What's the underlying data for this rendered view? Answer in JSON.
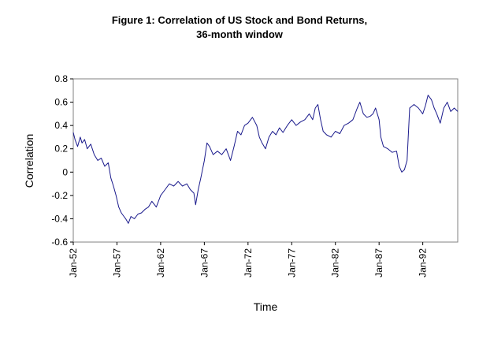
{
  "chart_data": {
    "type": "line",
    "title": "Figure 1: Correlation of US Stock and Bond Returns,",
    "subtitle": "36-month window",
    "xlabel": "Time",
    "ylabel": "Correlation",
    "ylim": [
      -0.6,
      0.8
    ],
    "xlim": [
      1952.0,
      1996.0
    ],
    "yticks": [
      "0.8",
      "0.6",
      "0.4",
      "0.2",
      "0",
      "-0.2",
      "-0.4",
      "-0.6"
    ],
    "xtick_labels": [
      "Jan-52",
      "Jan-57",
      "Jan-62",
      "Jan-67",
      "Jan-72",
      "Jan-77",
      "Jan-82",
      "Jan-87",
      "Jan-92"
    ],
    "grid": false,
    "legend": "none",
    "line_color": "#1a1a8c",
    "series": [
      {
        "x": [
          1952.0,
          1952.2,
          1952.5,
          1952.8,
          1953.0,
          1953.3,
          1953.6,
          1954.0,
          1954.4,
          1954.8,
          1955.2,
          1955.6,
          1956.0,
          1956.3,
          1956.6,
          1956.9,
          1957.2,
          1957.5,
          1957.8,
          1958.0,
          1958.3,
          1958.6,
          1959.0,
          1959.4,
          1959.8,
          1960.2,
          1960.6,
          1961.0,
          1961.5,
          1962.0,
          1962.5,
          1963.0,
          1963.5,
          1964.0,
          1964.5,
          1965.0,
          1965.4,
          1965.8,
          1966.0,
          1966.3,
          1966.6,
          1967.0,
          1967.3,
          1967.6,
          1968.0,
          1968.5,
          1969.0,
          1969.5,
          1970.0,
          1970.4,
          1970.8,
          1971.2,
          1971.6,
          1972.0,
          1972.5,
          1973.0,
          1973.3,
          1973.6,
          1974.0,
          1974.4,
          1974.8,
          1975.2,
          1975.6,
          1976.0,
          1976.5,
          1977.0,
          1977.5,
          1978.0,
          1978.5,
          1979.0,
          1979.4,
          1979.7,
          1980.0,
          1980.3,
          1980.6,
          1981.0,
          1981.5,
          1982.0,
          1982.5,
          1983.0,
          1983.5,
          1984.0,
          1984.5,
          1984.8,
          1985.2,
          1985.6,
          1986.0,
          1986.3,
          1986.6,
          1987.0,
          1987.2,
          1987.5,
          1988.0,
          1988.5,
          1989.0,
          1989.3,
          1989.6,
          1989.9,
          1990.2,
          1990.5,
          1991.0,
          1991.5,
          1992.0,
          1992.3,
          1992.6,
          1993.0,
          1993.3,
          1993.6,
          1994.0,
          1994.4,
          1994.8,
          1995.2,
          1995.6,
          1996.0
        ],
        "y": [
          0.34,
          0.28,
          0.22,
          0.3,
          0.25,
          0.28,
          0.2,
          0.24,
          0.15,
          0.1,
          0.12,
          0.05,
          0.08,
          -0.05,
          -0.12,
          -0.2,
          -0.3,
          -0.35,
          -0.38,
          -0.4,
          -0.44,
          -0.38,
          -0.4,
          -0.36,
          -0.35,
          -0.32,
          -0.3,
          -0.25,
          -0.3,
          -0.2,
          -0.15,
          -0.1,
          -0.12,
          -0.08,
          -0.12,
          -0.1,
          -0.15,
          -0.18,
          -0.28,
          -0.15,
          -0.05,
          0.1,
          0.25,
          0.22,
          0.15,
          0.18,
          0.15,
          0.2,
          0.1,
          0.22,
          0.35,
          0.32,
          0.4,
          0.42,
          0.47,
          0.4,
          0.3,
          0.25,
          0.2,
          0.3,
          0.35,
          0.32,
          0.38,
          0.34,
          0.4,
          0.45,
          0.4,
          0.43,
          0.45,
          0.5,
          0.45,
          0.55,
          0.58,
          0.45,
          0.35,
          0.32,
          0.3,
          0.35,
          0.33,
          0.4,
          0.42,
          0.45,
          0.55,
          0.6,
          0.5,
          0.47,
          0.48,
          0.5,
          0.55,
          0.45,
          0.3,
          0.22,
          0.2,
          0.17,
          0.18,
          0.05,
          0.0,
          0.02,
          0.1,
          0.55,
          0.58,
          0.55,
          0.5,
          0.57,
          0.66,
          0.62,
          0.55,
          0.5,
          0.42,
          0.55,
          0.6,
          0.52,
          0.55,
          0.52
        ]
      }
    ]
  }
}
